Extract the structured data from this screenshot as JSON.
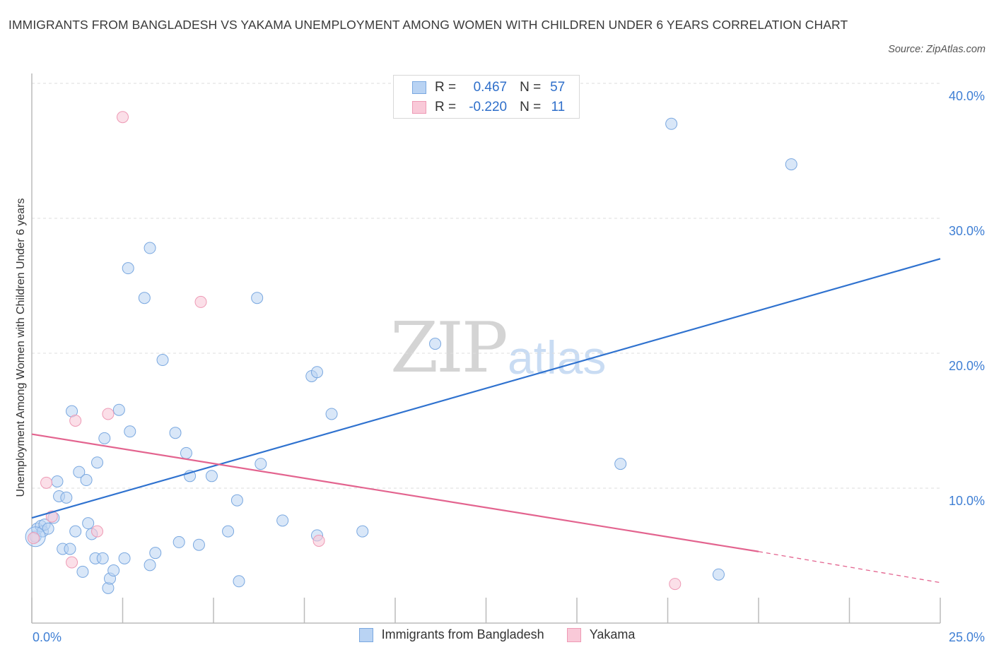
{
  "header": {
    "title": "IMMIGRANTS FROM BANGLADESH VS YAKAMA UNEMPLOYMENT AMONG WOMEN WITH CHILDREN UNDER 6 YEARS CORRELATION CHART",
    "source": "Source: ZipAtlas.com"
  },
  "watermark": {
    "zip": "ZIP",
    "atlas": "atlas"
  },
  "legend_top": {
    "rows": [
      {
        "r_label": "R =",
        "r_value": "0.467",
        "n_label": "N =",
        "n_value": "57"
      },
      {
        "r_label": "R =",
        "r_value": "-0.220",
        "n_label": "N =",
        "n_value": "11"
      }
    ]
  },
  "legend_bottom": {
    "series1": "Immigrants from Bangladesh",
    "series2": "Yakama"
  },
  "colors": {
    "blue_fill": "#b9d3f3",
    "blue_stroke": "#7aa8e0",
    "blue_line": "#2f72cf",
    "pink_fill": "#f9c9d8",
    "pink_stroke": "#ee9ab5",
    "pink_line": "#e3648f",
    "axis_text": "#3f7fd4",
    "grid": "#dedede"
  },
  "chart_data": {
    "type": "scatter",
    "title": "IMMIGRANTS FROM BANGLADESH VS YAKAMA UNEMPLOYMENT AMONG WOMEN WITH CHILDREN UNDER 6 YEARS CORRELATION CHART",
    "xlabel": "",
    "ylabel": "Unemployment Among Women with Children Under 6 years",
    "xlim": [
      0,
      25
    ],
    "ylim": [
      0,
      40
    ],
    "x_tick_labels": [
      {
        "value": 0,
        "label": "0.0%"
      },
      {
        "value": 25,
        "label": "25.0%"
      }
    ],
    "y_tick_labels": [
      {
        "value": 10,
        "label": "10.0%"
      },
      {
        "value": 20,
        "label": "20.0%"
      },
      {
        "value": 30,
        "label": "30.0%"
      },
      {
        "value": 40,
        "label": "40.0%"
      }
    ],
    "grid": true,
    "series": [
      {
        "name": "Immigrants from Bangladesh",
        "color": "blue",
        "R": 0.467,
        "N": 57,
        "trend": {
          "x0": 0,
          "y0": 7.8,
          "x1": 25,
          "y1": 27.0
        },
        "points": [
          [
            0.1,
            6.4
          ],
          [
            0.15,
            7.0
          ],
          [
            0.25,
            7.2
          ],
          [
            0.3,
            6.8
          ],
          [
            0.35,
            7.3
          ],
          [
            0.45,
            7.0
          ],
          [
            0.6,
            7.8
          ],
          [
            0.7,
            10.5
          ],
          [
            0.75,
            9.4
          ],
          [
            0.85,
            5.5
          ],
          [
            0.95,
            9.3
          ],
          [
            1.05,
            5.5
          ],
          [
            1.1,
            15.7
          ],
          [
            1.2,
            6.8
          ],
          [
            1.3,
            11.2
          ],
          [
            1.4,
            3.8
          ],
          [
            1.5,
            10.6
          ],
          [
            1.55,
            7.4
          ],
          [
            1.65,
            6.6
          ],
          [
            1.75,
            4.8
          ],
          [
            1.8,
            11.9
          ],
          [
            1.95,
            4.8
          ],
          [
            2.0,
            13.7
          ],
          [
            2.1,
            2.6
          ],
          [
            2.15,
            3.3
          ],
          [
            2.25,
            3.9
          ],
          [
            2.4,
            15.8
          ],
          [
            2.55,
            4.8
          ],
          [
            2.65,
            26.3
          ],
          [
            2.7,
            14.2
          ],
          [
            3.1,
            24.1
          ],
          [
            3.25,
            27.8
          ],
          [
            3.25,
            4.3
          ],
          [
            3.4,
            5.2
          ],
          [
            3.6,
            19.5
          ],
          [
            3.95,
            14.1
          ],
          [
            4.05,
            6.0
          ],
          [
            4.25,
            12.6
          ],
          [
            4.35,
            10.9
          ],
          [
            4.6,
            5.8
          ],
          [
            4.95,
            10.9
          ],
          [
            5.4,
            6.8
          ],
          [
            5.65,
            9.1
          ],
          [
            5.7,
            3.1
          ],
          [
            6.2,
            24.1
          ],
          [
            6.3,
            11.8
          ],
          [
            6.9,
            7.6
          ],
          [
            7.7,
            18.3
          ],
          [
            7.85,
            18.6
          ],
          [
            7.85,
            6.5
          ],
          [
            8.25,
            15.5
          ],
          [
            9.1,
            6.8
          ],
          [
            11.1,
            20.7
          ],
          [
            16.2,
            11.8
          ],
          [
            17.6,
            37.0
          ],
          [
            18.9,
            3.6
          ],
          [
            20.9,
            34.0
          ]
        ]
      },
      {
        "name": "Yakama",
        "color": "pink",
        "R": -0.22,
        "N": 11,
        "trend": {
          "x0": 0,
          "y0": 14.0,
          "x1": 20.0,
          "y1": 5.3,
          "dashed_to_x": 25,
          "dashed_to_y": 3.0
        },
        "points": [
          [
            0.05,
            6.3
          ],
          [
            0.4,
            10.4
          ],
          [
            0.55,
            7.9
          ],
          [
            1.1,
            4.5
          ],
          [
            1.2,
            15.0
          ],
          [
            1.8,
            6.8
          ],
          [
            2.1,
            15.5
          ],
          [
            2.5,
            37.5
          ],
          [
            4.65,
            23.8
          ],
          [
            7.9,
            6.1
          ],
          [
            17.7,
            2.9
          ]
        ]
      }
    ]
  }
}
